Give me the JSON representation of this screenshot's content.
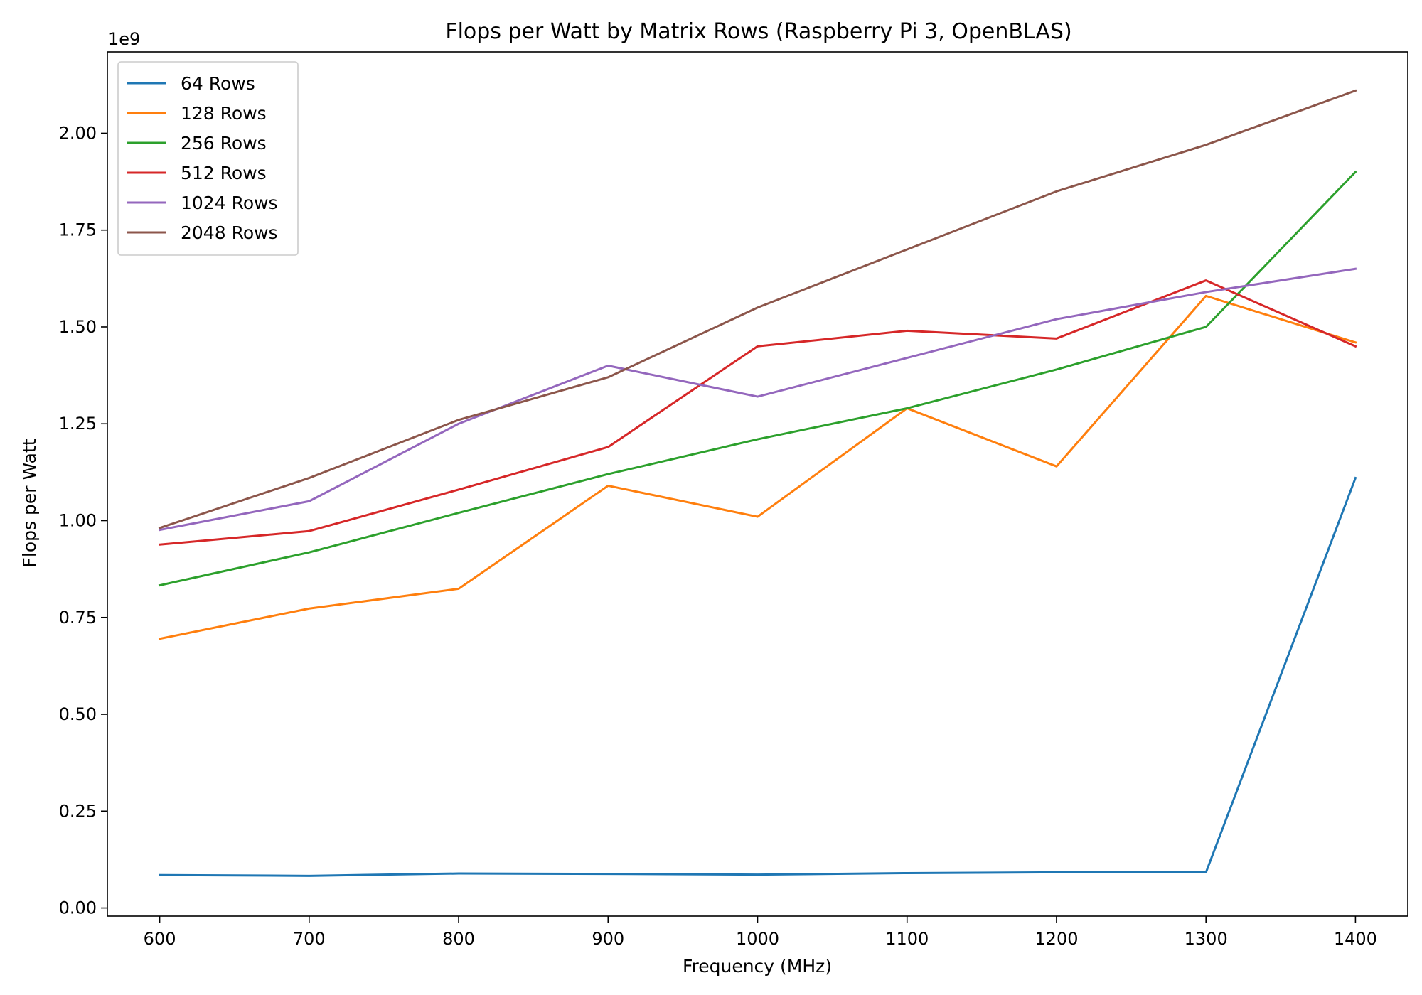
{
  "chart_data": {
    "type": "line",
    "title": "Flops per Watt by Matrix Rows (Raspberry Pi 3, OpenBLAS)",
    "xlabel": "Frequency (MHz)",
    "ylabel": "Flops per Watt",
    "y_offset_label": "1e9",
    "y_scale": 1000000000,
    "xlim": [
      565,
      1435
    ],
    "ylim": [
      -0.021,
      2.21
    ],
    "x": [
      600,
      700,
      800,
      900,
      1000,
      1100,
      1200,
      1300,
      1400
    ],
    "x_ticks": [
      600,
      700,
      800,
      900,
      1000,
      1100,
      1200,
      1300,
      1400
    ],
    "x_tick_labels": [
      "600",
      "700",
      "800",
      "900",
      "1000",
      "1100",
      "1200",
      "1300",
      "1400"
    ],
    "y_ticks": [
      0,
      0.25,
      0.5,
      0.75,
      1.0,
      1.25,
      1.5,
      1.75,
      2.0
    ],
    "y_tick_labels": [
      "0.00",
      "0.25",
      "0.50",
      "0.75",
      "1.00",
      "1.25",
      "1.50",
      "1.75",
      "2.00"
    ],
    "grid": false,
    "legend_position": "upper-left",
    "series": [
      {
        "name": "64 Rows",
        "color": "#1f77b4",
        "values": [
          0.085,
          0.083,
          0.089,
          0.088,
          0.086,
          0.09,
          0.092,
          0.092,
          1.11
        ]
      },
      {
        "name": "128 Rows",
        "color": "#ff7f0e",
        "values": [
          0.695,
          0.773,
          0.824,
          1.09,
          1.01,
          1.29,
          1.14,
          1.58,
          1.46
        ]
      },
      {
        "name": "256 Rows",
        "color": "#2ca02c",
        "values": [
          0.833,
          0.918,
          1.02,
          1.12,
          1.21,
          1.29,
          1.39,
          1.5,
          1.9
        ]
      },
      {
        "name": "512 Rows",
        "color": "#d62728",
        "values": [
          0.938,
          0.973,
          1.08,
          1.19,
          1.45,
          1.49,
          1.47,
          1.62,
          1.45
        ]
      },
      {
        "name": "1024 Rows",
        "color": "#9467bd",
        "values": [
          0.976,
          1.05,
          1.25,
          1.4,
          1.32,
          1.42,
          1.52,
          1.59,
          1.65
        ]
      },
      {
        "name": "2048 Rows",
        "color": "#8c564b",
        "values": [
          0.981,
          1.11,
          1.26,
          1.37,
          1.55,
          1.7,
          1.85,
          1.97,
          2.11
        ]
      }
    ]
  }
}
